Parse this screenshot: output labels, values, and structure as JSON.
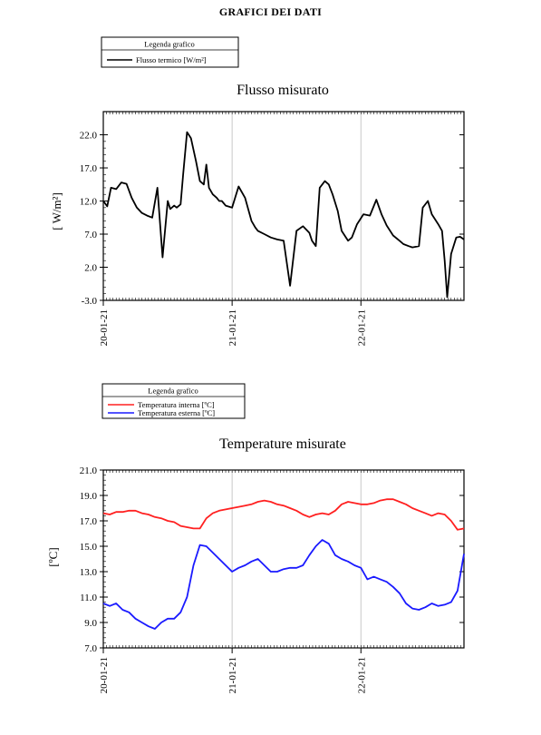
{
  "page": {
    "title": "GRAFICI DEI DATI"
  },
  "chart_data": [
    {
      "type": "line",
      "title": "Flusso misurato",
      "ylabel": "[ W/m²]",
      "ylim": [
        -3.0,
        25.5
      ],
      "yticks": [
        "-3.0",
        "2.0",
        "7.0",
        "12.0",
        "17.0",
        "22.0"
      ],
      "ytick_values": [
        -3,
        2,
        7,
        12,
        17,
        22
      ],
      "xlim": [
        0,
        2.8
      ],
      "xticks": [
        "20-01-21",
        "21-01-21",
        "22-01-21"
      ],
      "xtick_values": [
        0,
        1,
        2
      ],
      "grid": "vertical",
      "legend": {
        "title": "Legenda grafico",
        "placement": "top-left"
      },
      "series": [
        {
          "name": "Flusso termico [W/m²]",
          "color": "#000000",
          "x": [
            0,
            0.03,
            0.06,
            0.1,
            0.14,
            0.18,
            0.22,
            0.26,
            0.3,
            0.34,
            0.38,
            0.42,
            0.46,
            0.5,
            0.52,
            0.55,
            0.57,
            0.6,
            0.62,
            0.65,
            0.68,
            0.72,
            0.75,
            0.78,
            0.8,
            0.82,
            0.85,
            0.88,
            0.9,
            0.92,
            0.95,
            1.0,
            1.05,
            1.1,
            1.15,
            1.18,
            1.2,
            1.25,
            1.3,
            1.35,
            1.4,
            1.45,
            1.5,
            1.55,
            1.57,
            1.6,
            1.62,
            1.65,
            1.68,
            1.72,
            1.75,
            1.78,
            1.82,
            1.85,
            1.9,
            1.93,
            1.97,
            2.02,
            2.07,
            2.12,
            2.16,
            2.2,
            2.25,
            2.3,
            2.33,
            2.37,
            2.4,
            2.45,
            2.48,
            2.52,
            2.55,
            2.6,
            2.63,
            2.65,
            2.67,
            2.7,
            2.74,
            2.77,
            2.8
          ],
          "y": [
            12,
            11.2,
            14,
            13.8,
            14.8,
            14.6,
            12.5,
            11,
            10.2,
            9.8,
            9.5,
            14,
            3.5,
            12,
            10.8,
            11.3,
            11,
            11.5,
            16,
            22.4,
            21.5,
            18,
            15,
            14.5,
            17.5,
            14,
            13,
            12.5,
            12,
            12,
            11.3,
            11,
            14.2,
            12.5,
            9,
            8,
            7.5,
            7,
            6.5,
            6.2,
            6,
            -0.8,
            7.5,
            8.2,
            7.8,
            7.2,
            6,
            5.2,
            14,
            15,
            14.5,
            13,
            10.5,
            7.5,
            6,
            6.5,
            8.5,
            10,
            9.8,
            12.2,
            10,
            8.3,
            6.8,
            6,
            5.5,
            5.2,
            5,
            5.2,
            11,
            12,
            10,
            8.5,
            7.5,
            3,
            -2.5,
            4,
            6.5,
            6.6,
            6.2
          ]
        }
      ]
    },
    {
      "type": "line",
      "title": "Temperature misurate",
      "ylabel": "[ºC]",
      "ylim": [
        7.0,
        21.0
      ],
      "yticks": [
        "7.0",
        "9.0",
        "11.0",
        "13.0",
        "15.0",
        "17.0",
        "19.0",
        "21.0"
      ],
      "ytick_values": [
        7,
        9,
        11,
        13,
        15,
        17,
        19,
        21
      ],
      "xlim": [
        0,
        2.8
      ],
      "xticks": [
        "20-01-21",
        "21-01-21",
        "22-01-21"
      ],
      "xtick_values": [
        0,
        1,
        2
      ],
      "grid": "vertical",
      "legend": {
        "title": "Legenda grafico",
        "placement": "top-left"
      },
      "series": [
        {
          "name": "Temperatura interna [ºC]",
          "color": "#ff2020",
          "x": [
            0,
            0.05,
            0.1,
            0.15,
            0.2,
            0.25,
            0.3,
            0.35,
            0.4,
            0.45,
            0.5,
            0.55,
            0.6,
            0.65,
            0.7,
            0.75,
            0.8,
            0.85,
            0.9,
            0.95,
            1.0,
            1.05,
            1.1,
            1.15,
            1.2,
            1.25,
            1.3,
            1.35,
            1.4,
            1.45,
            1.5,
            1.55,
            1.6,
            1.65,
            1.7,
            1.75,
            1.8,
            1.85,
            1.9,
            1.95,
            2.0,
            2.05,
            2.1,
            2.15,
            2.2,
            2.25,
            2.3,
            2.35,
            2.4,
            2.45,
            2.5,
            2.55,
            2.6,
            2.65,
            2.7,
            2.75,
            2.8
          ],
          "y": [
            17.6,
            17.5,
            17.7,
            17.7,
            17.8,
            17.8,
            17.6,
            17.5,
            17.3,
            17.2,
            17.0,
            16.9,
            16.6,
            16.5,
            16.4,
            16.4,
            17.2,
            17.6,
            17.8,
            17.9,
            18.0,
            18.1,
            18.2,
            18.3,
            18.5,
            18.6,
            18.5,
            18.3,
            18.2,
            18.0,
            17.8,
            17.5,
            17.3,
            17.5,
            17.6,
            17.5,
            17.8,
            18.3,
            18.5,
            18.4,
            18.3,
            18.3,
            18.4,
            18.6,
            18.7,
            18.7,
            18.5,
            18.3,
            18.0,
            17.8,
            17.6,
            17.4,
            17.6,
            17.5,
            17.0,
            16.3,
            16.4
          ]
        },
        {
          "name": "Temperatura esterna [ºC]",
          "color": "#1a1aff",
          "x": [
            0,
            0.05,
            0.1,
            0.15,
            0.2,
            0.25,
            0.3,
            0.35,
            0.4,
            0.45,
            0.5,
            0.55,
            0.6,
            0.65,
            0.7,
            0.75,
            0.8,
            0.85,
            0.9,
            0.95,
            1.0,
            1.05,
            1.1,
            1.15,
            1.2,
            1.25,
            1.3,
            1.35,
            1.4,
            1.45,
            1.5,
            1.55,
            1.6,
            1.65,
            1.7,
            1.75,
            1.8,
            1.85,
            1.9,
            1.95,
            2.0,
            2.05,
            2.1,
            2.15,
            2.2,
            2.25,
            2.3,
            2.35,
            2.4,
            2.45,
            2.5,
            2.55,
            2.6,
            2.65,
            2.7,
            2.75,
            2.8
          ],
          "y": [
            10.5,
            10.3,
            10.5,
            10.0,
            9.8,
            9.3,
            9.0,
            8.7,
            8.5,
            9.0,
            9.3,
            9.3,
            9.8,
            11.0,
            13.5,
            15.1,
            15.0,
            14.5,
            14.0,
            13.5,
            13.0,
            13.3,
            13.5,
            13.8,
            14.0,
            13.5,
            13.0,
            13.0,
            13.2,
            13.3,
            13.3,
            13.5,
            14.3,
            15.0,
            15.5,
            15.2,
            14.3,
            14.0,
            13.8,
            13.5,
            13.3,
            12.4,
            12.6,
            12.4,
            12.2,
            11.8,
            11.3,
            10.5,
            10.1,
            10.0,
            10.2,
            10.5,
            10.3,
            10.4,
            10.6,
            11.5,
            14.4
          ]
        }
      ]
    }
  ]
}
